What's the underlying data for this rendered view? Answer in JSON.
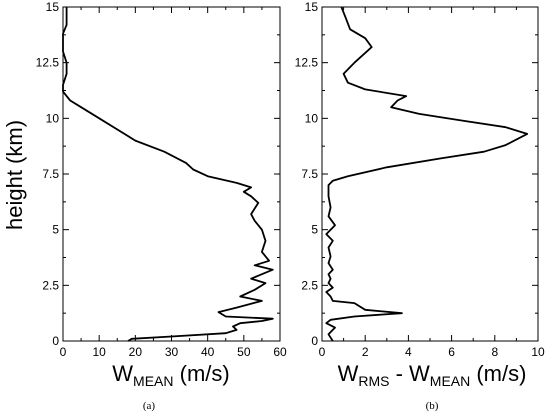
{
  "chart_data": [
    {
      "type": "line",
      "panel_label": "(a)",
      "ylabel": "height (km)",
      "xlabel": {
        "main": "W",
        "sub": "MEAN",
        "unit": " (m/s)"
      },
      "xlim": [
        0,
        60
      ],
      "ylim": [
        0,
        15
      ],
      "xticks": [
        0,
        10,
        20,
        30,
        40,
        50,
        60
      ],
      "yticks": [
        0,
        2.5,
        5,
        7.5,
        10,
        12.5,
        15
      ],
      "ytick_labels": [
        "0",
        "2.5",
        "5",
        "7.5",
        "10",
        "12.5",
        "15"
      ],
      "series": [
        {
          "x": [
            18,
            19,
            30,
            45,
            48,
            47,
            49,
            55,
            58,
            45,
            43,
            48,
            55,
            49,
            53,
            56,
            52,
            55,
            58,
            53,
            57,
            55,
            56,
            55,
            53,
            52,
            54,
            52,
            50,
            52,
            48,
            40,
            36,
            34,
            28,
            20,
            10,
            5,
            2,
            1,
            0,
            0,
            1,
            1,
            0,
            0,
            0,
            1,
            1,
            1
          ],
          "y": [
            0,
            0.1,
            0.2,
            0.35,
            0.5,
            0.65,
            0.8,
            0.9,
            1.0,
            1.1,
            1.3,
            1.5,
            1.8,
            2.0,
            2.3,
            2.6,
            2.8,
            3.0,
            3.2,
            3.4,
            3.6,
            4.0,
            4.5,
            5.0,
            5.4,
            5.7,
            6.2,
            6.5,
            6.7,
            6.9,
            7.1,
            7.4,
            7.7,
            8.0,
            8.5,
            9.0,
            10.0,
            10.5,
            10.8,
            11.0,
            11.2,
            11.5,
            12.0,
            12.5,
            13.0,
            13.3,
            13.8,
            14.2,
            14.6,
            15.0
          ]
        }
      ]
    },
    {
      "type": "line",
      "panel_label": "(b)",
      "ylabel": "",
      "xlabel": {
        "main": "W",
        "sub": "RMS",
        "mid": " - W",
        "sub2": "MEAN",
        "unit": " (m/s)"
      },
      "xlim": [
        0,
        10
      ],
      "ylim": [
        0,
        15
      ],
      "xticks": [
        0,
        2,
        4,
        6,
        8,
        10
      ],
      "yticks": [
        0,
        2.5,
        5,
        7.5,
        10,
        12.5,
        15
      ],
      "ytick_labels": [
        "0",
        "2.5",
        "5",
        "7.5",
        "10",
        "12.5",
        "15"
      ],
      "series": [
        {
          "x": [
            0.5,
            0.3,
            0.6,
            0.2,
            0.4,
            1.5,
            3.7,
            2.0,
            1.5,
            0.5,
            0.4,
            0.2,
            0.5,
            0.3,
            0.4,
            0.3,
            0.5,
            0.3,
            0.4,
            0.3,
            0.5,
            0.2,
            0.6,
            0.3,
            0.4,
            0.3,
            0.3,
            0.5,
            1.2,
            3.0,
            5.5,
            7.5,
            8.5,
            9.5,
            8.5,
            6.5,
            4.5,
            3.2,
            3.5,
            3.9,
            2.0,
            1.2,
            1.0,
            1.5,
            2.3,
            2.0,
            1.3,
            1.1,
            0.9
          ],
          "y": [
            0,
            0.3,
            0.6,
            0.8,
            0.95,
            1.1,
            1.25,
            1.4,
            1.7,
            1.8,
            2.0,
            2.2,
            2.4,
            2.6,
            2.8,
            3.0,
            3.2,
            3.5,
            3.8,
            4.2,
            4.5,
            4.8,
            5.2,
            5.6,
            6.0,
            6.5,
            7.0,
            7.2,
            7.4,
            7.8,
            8.2,
            8.5,
            8.8,
            9.3,
            9.6,
            9.9,
            10.2,
            10.5,
            10.8,
            11.0,
            11.3,
            11.6,
            12.0,
            12.5,
            13.2,
            13.6,
            14.0,
            14.5,
            15.0
          ]
        }
      ]
    }
  ]
}
